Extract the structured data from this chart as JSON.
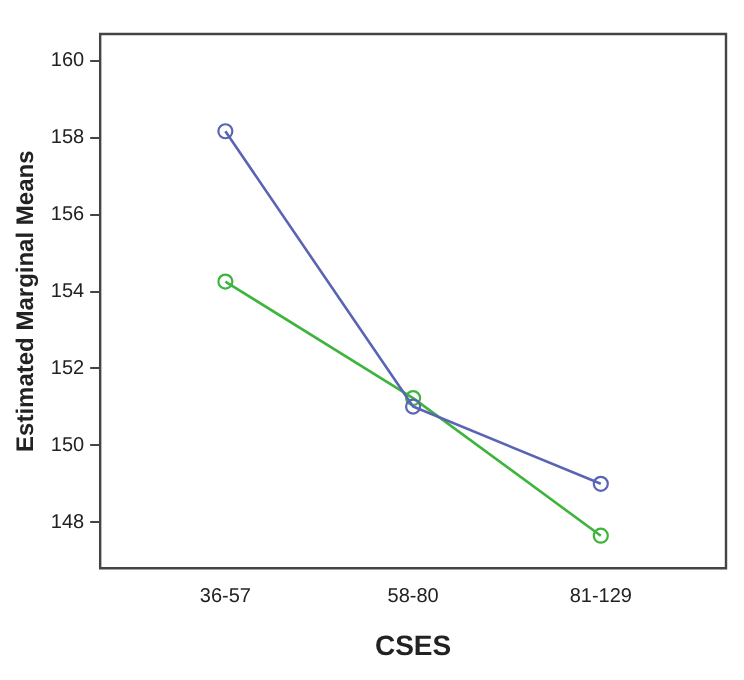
{
  "chart_data": {
    "type": "line",
    "xlabel": "CSES",
    "ylabel": "Estimated Marginal Means",
    "categories": [
      "36-57",
      "58-80",
      "81-129"
    ],
    "series": [
      {
        "color": "#5a64b4",
        "values": [
          158.17,
          151.01,
          149.0
        ]
      },
      {
        "color": "#3db53d",
        "values": [
          154.26,
          151.23,
          147.65
        ]
      }
    ],
    "ylim": [
      146.8,
      160.7
    ],
    "yticks": [
      148,
      150,
      152,
      154,
      156,
      158,
      160
    ],
    "grid": false,
    "legend": false,
    "marker": "circle",
    "line_style": "solid"
  }
}
